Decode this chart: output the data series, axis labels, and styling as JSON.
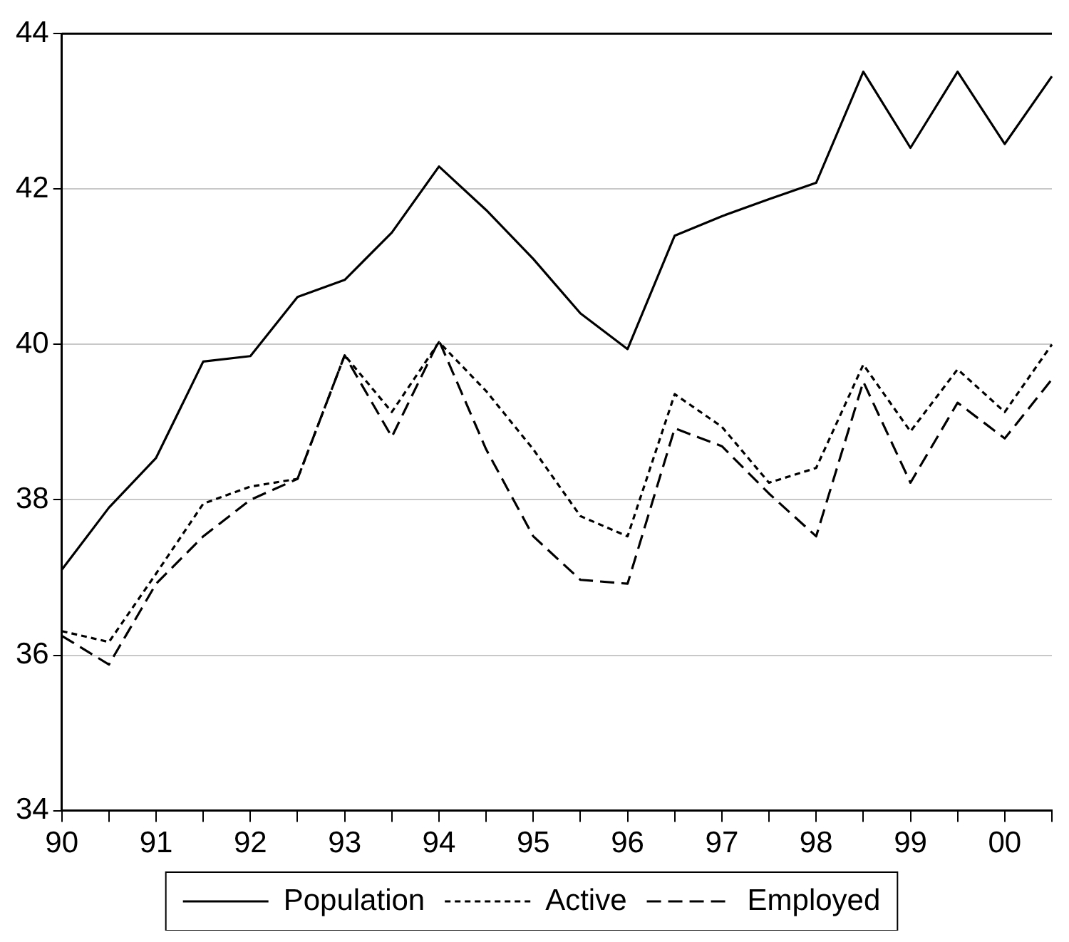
{
  "chart_data": {
    "type": "line",
    "categories": [
      "90",
      null,
      "91",
      null,
      "92",
      null,
      "93",
      null,
      "94",
      null,
      "95",
      null,
      "96",
      null,
      "97",
      null,
      "98",
      null,
      "99",
      null,
      "00",
      null
    ],
    "series": [
      {
        "name": "Population",
        "color": "#000000",
        "line_style": "solid",
        "values": [
          37.1,
          37.9,
          38.54,
          39.78,
          39.85,
          40.61,
          40.83,
          41.44,
          42.29,
          41.73,
          41.1,
          40.4,
          39.94,
          41.4,
          41.65,
          41.87,
          42.08,
          43.51,
          42.53,
          43.51,
          42.58,
          43.45
        ]
      },
      {
        "name": "Active",
        "color": "#000000",
        "line_style": "dotted",
        "values": [
          36.31,
          36.17,
          37.05,
          37.95,
          38.17,
          38.27,
          39.86,
          39.13,
          40.03,
          39.4,
          38.65,
          37.79,
          37.53,
          39.36,
          38.94,
          38.22,
          38.41,
          39.74,
          38.88,
          39.68,
          39.13,
          40.0
        ]
      },
      {
        "name": "Employed",
        "color": "#000000",
        "line_style": "dashed",
        "values": [
          36.25,
          35.88,
          36.92,
          37.53,
          38.0,
          38.27,
          39.86,
          38.81,
          40.05,
          38.65,
          37.53,
          36.97,
          36.92,
          38.92,
          38.69,
          38.08,
          37.53,
          39.52,
          38.22,
          39.25,
          38.79,
          39.55
        ]
      }
    ],
    "ylim": [
      34,
      44
    ],
    "yticks": [
      34,
      36,
      38,
      40,
      42,
      44
    ],
    "grid": true,
    "legend": "bottom",
    "marker": "none"
  }
}
